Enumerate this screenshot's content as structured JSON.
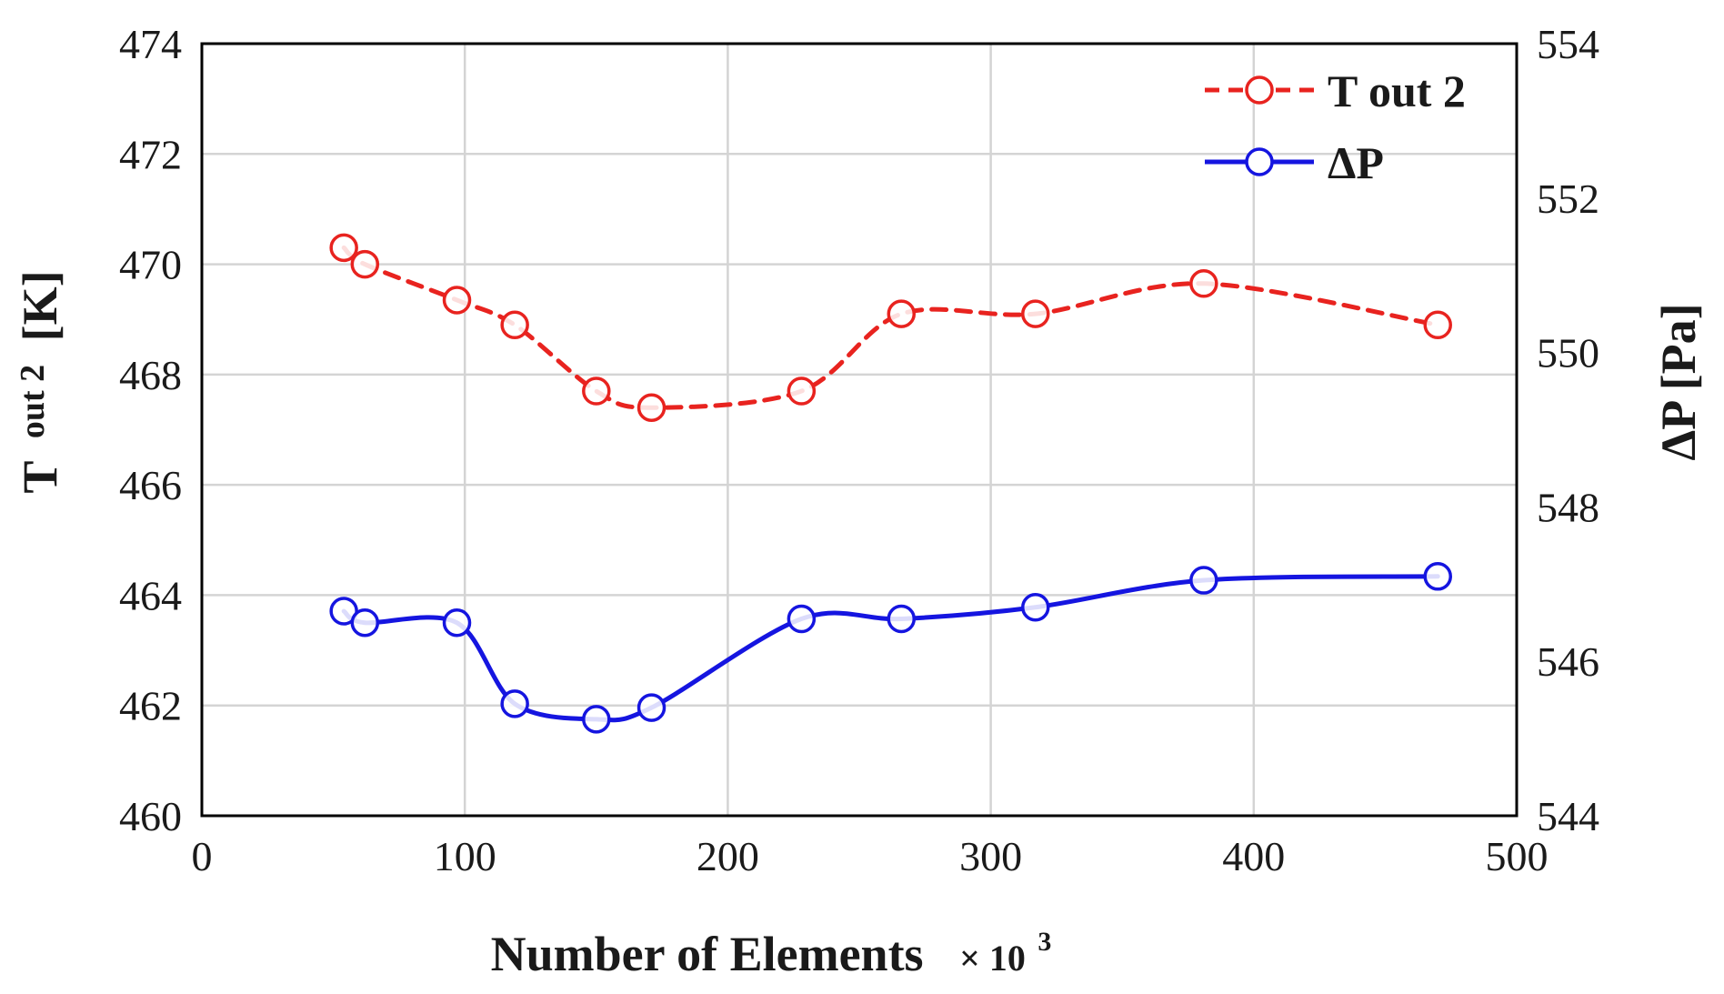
{
  "chart_data": {
    "type": "line",
    "x_axis": {
      "label": "Number of Elements",
      "label_suffix": "× 10",
      "label_suffix_exponent": "3",
      "range": [
        0,
        500
      ],
      "ticks": [
        "0",
        "100",
        "200",
        "300",
        "400",
        "500"
      ],
      "tick_values": [
        0,
        100,
        200,
        300,
        400,
        500
      ],
      "grid": true
    },
    "y_left": {
      "label_main": "T",
      "label_subscript": "out 2",
      "label_unit": "[K]",
      "range": [
        460,
        474
      ],
      "ticks": [
        "460",
        "462",
        "464",
        "466",
        "468",
        "470",
        "472",
        "474"
      ],
      "tick_values": [
        460,
        462,
        464,
        466,
        468,
        470,
        472,
        474
      ],
      "grid": true
    },
    "y_right": {
      "label": "ΔP [Pa]",
      "range": [
        544,
        554
      ],
      "ticks": [
        "544",
        "546",
        "548",
        "550",
        "552",
        "554"
      ],
      "tick_values": [
        544,
        546,
        548,
        550,
        552,
        554
      ]
    },
    "legend_position": "top-right",
    "series": [
      {
        "name": "T out 2",
        "axis": "left",
        "color": "#e8231f",
        "line_style": "dashed",
        "marker": "open-circle",
        "x": [
          54,
          62,
          97,
          119,
          150,
          171,
          228,
          266,
          317,
          381,
          470
        ],
        "y": [
          470.3,
          470.0,
          469.35,
          468.9,
          467.7,
          467.4,
          467.7,
          469.1,
          469.1,
          469.65,
          468.9
        ]
      },
      {
        "name": "ΔP",
        "axis": "right",
        "color": "#1515e0",
        "line_style": "solid",
        "marker": "open-circle",
        "x": [
          54,
          62,
          97,
          119,
          150,
          171,
          228,
          266,
          317,
          381,
          470
        ],
        "y": [
          546.65,
          546.5,
          546.5,
          545.45,
          545.25,
          545.4,
          546.55,
          546.55,
          546.7,
          547.05,
          547.1
        ]
      }
    ]
  }
}
